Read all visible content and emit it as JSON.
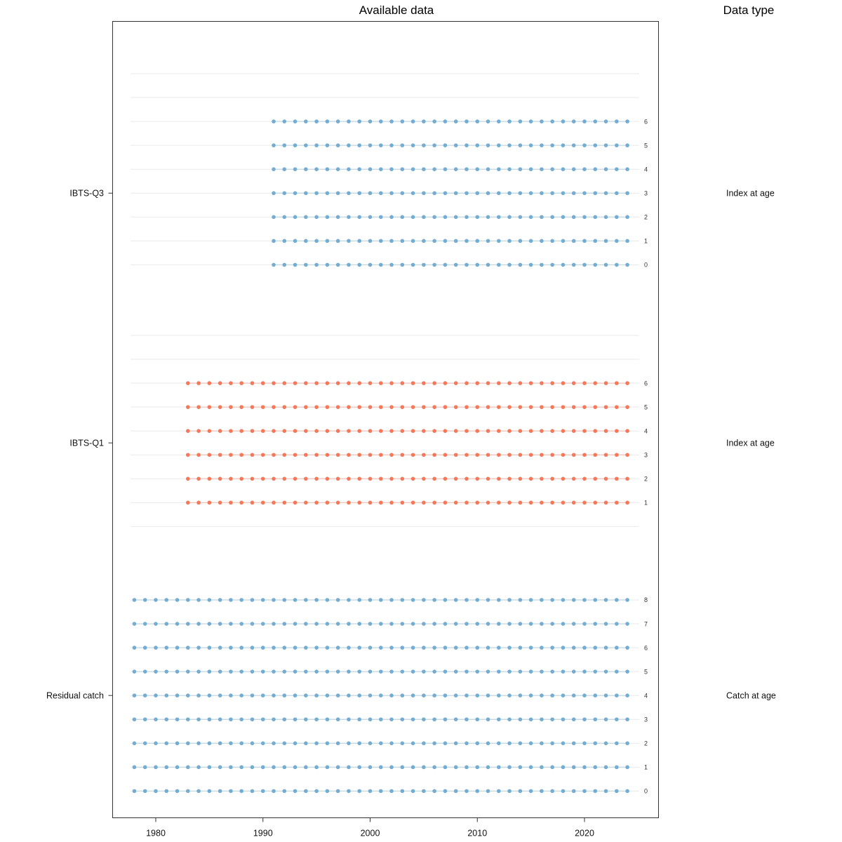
{
  "right_panel": {
    "header": "Data type"
  },
  "chart_data": {
    "type": "scatter",
    "title": "Available data",
    "subtitle": "",
    "x_axis": {
      "tick_years": [
        1980,
        1990,
        2000,
        2010,
        2020
      ],
      "tick_labels": [
        "1980",
        "1990",
        "2000",
        "2010",
        "2020"
      ],
      "range": [
        1977,
        2025
      ]
    },
    "y_axis": {
      "age_rows_top_to_bottom": [
        8,
        7,
        6,
        5,
        4,
        3,
        2,
        1,
        0
      ]
    },
    "grid": "horizontal-only",
    "legend": "none",
    "fleets": [
      {
        "name": "IBTS-Q3",
        "data_type": "Index at age",
        "color": "#74add1",
        "ages": [
          6,
          5,
          4,
          3,
          2,
          1,
          0
        ],
        "age_labels": [
          "6",
          "5",
          "4",
          "3",
          "2",
          "1",
          "0"
        ],
        "first_year": 1991,
        "last_year": 2024
      },
      {
        "name": "IBTS-Q1",
        "data_type": "Index at age",
        "color": "#f4795b",
        "ages": [
          6,
          5,
          4,
          3,
          2,
          1
        ],
        "age_labels": [
          "6",
          "5",
          "4",
          "3",
          "2",
          "1"
        ],
        "first_year": 1983,
        "last_year": 2024
      },
      {
        "name": "Residual catch",
        "data_type": "Catch at age",
        "color": "#74add1",
        "ages": [
          8,
          7,
          6,
          5,
          4,
          3,
          2,
          1,
          0
        ],
        "age_labels": [
          "8",
          "7",
          "6",
          "5",
          "4",
          "3",
          "2",
          "1",
          "0"
        ],
        "first_year": 1978,
        "last_year": 2024
      }
    ]
  }
}
